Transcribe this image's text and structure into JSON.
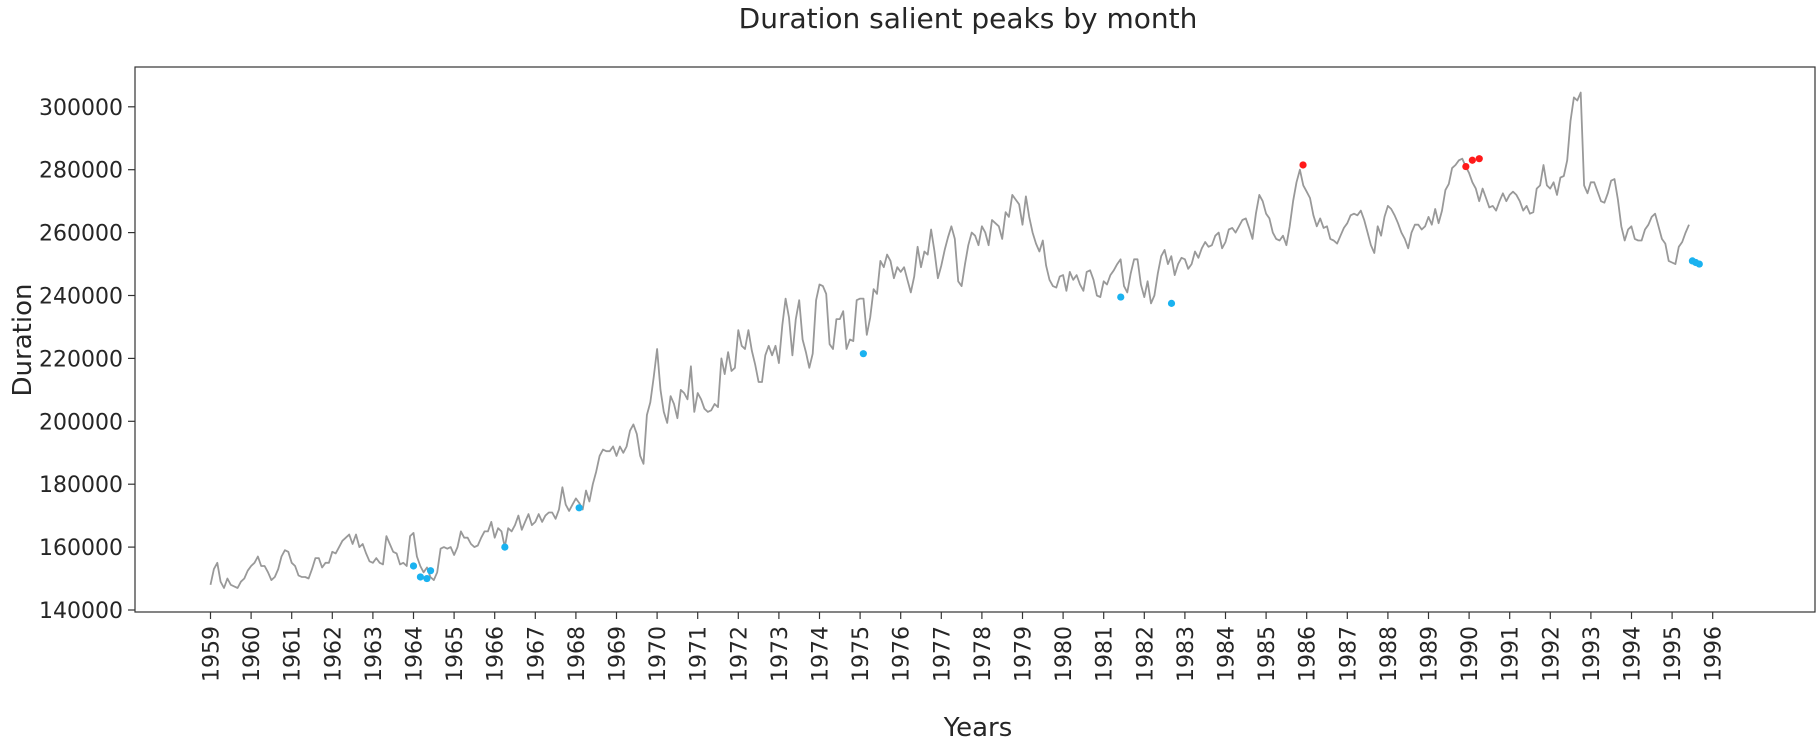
{
  "chart_data": {
    "type": "line",
    "title": "Duration salient peaks by month",
    "xlabel": "Years",
    "ylabel": "Duration",
    "xlim": [
      1959.0,
      1996.0
    ],
    "ylim": [
      140000,
      300000
    ],
    "yticks": [
      140000,
      160000,
      180000,
      200000,
      220000,
      240000,
      260000,
      280000,
      300000
    ],
    "xticks": [
      1959,
      1960,
      1961,
      1962,
      1963,
      1964,
      1965,
      1966,
      1967,
      1968,
      1969,
      1970,
      1971,
      1972,
      1973,
      1974,
      1975,
      1976,
      1977,
      1978,
      1979,
      1980,
      1981,
      1982,
      1983,
      1984,
      1985,
      1986,
      1987,
      1988,
      1989,
      1990,
      1991,
      1992,
      1993,
      1994,
      1995,
      1996
    ],
    "grid": false,
    "colors": {
      "line": "#999999",
      "high_peak": "#ff1a1a",
      "low_peak": "#1ab2f0",
      "axis": "#333333",
      "text": "#262626"
    },
    "series": [
      {
        "name": "Duration",
        "x_start": 1959.0,
        "x_step": 0.08333,
        "values": [
          148000,
          153000,
          155000,
          149000,
          147000,
          150000,
          148000,
          147500,
          147000,
          149000,
          150000,
          152500,
          154000,
          155000,
          157000,
          154000,
          154000,
          152000,
          149500,
          150500,
          153000,
          157000,
          159000,
          158500,
          155000,
          154000,
          151000,
          150500,
          150500,
          150000,
          153000,
          156500,
          156500,
          153500,
          155000,
          155000,
          158500,
          158000,
          160000,
          162000,
          163000,
          164000,
          161000,
          164000,
          160000,
          161000,
          158000,
          155500,
          155000,
          156500,
          155000,
          154500,
          163500,
          161000,
          158500,
          158000,
          154500,
          155000,
          154000,
          163500,
          164500,
          157000,
          154000,
          152000,
          153500,
          150500,
          149500,
          152000,
          159500,
          160000,
          159500,
          160000,
          157500,
          160000,
          165000,
          163000,
          163000,
          161000,
          160000,
          160500,
          163000,
          165000,
          165000,
          168000,
          163000,
          166000,
          165000,
          160000,
          166000,
          165000,
          167000,
          170000,
          165500,
          168000,
          170500,
          167000,
          168000,
          170500,
          168000,
          170000,
          171000,
          171000,
          169000,
          172000,
          179000,
          173500,
          171500,
          173500,
          175500,
          174000,
          172000,
          178000,
          174500,
          180000,
          184000,
          189000,
          191000,
          190500,
          190500,
          192000,
          189000,
          192000,
          190000,
          192000,
          197000,
          199000,
          196000,
          189000,
          186500,
          202000,
          206000,
          214000,
          223000,
          210000,
          203000,
          199500,
          208000,
          205500,
          201000,
          210000,
          209000,
          207000,
          217500,
          203000,
          209000,
          207000,
          204000,
          203000,
          203500,
          205500,
          204500,
          220000,
          215000,
          222000,
          216000,
          217000,
          229000,
          224000,
          223000,
          229000,
          222500,
          218000,
          212500,
          212500,
          221000,
          224000,
          221000,
          224000,
          218500,
          230500,
          239000,
          233000,
          221000,
          232500,
          238500,
          226000,
          222000,
          217000,
          221500,
          238500,
          243500,
          243000,
          240500,
          224500,
          223000,
          232500,
          232500,
          235000,
          223000,
          226000,
          225500,
          238500,
          239000,
          239000,
          227500,
          233000,
          242000,
          240500,
          251000,
          249000,
          253000,
          251000,
          245500,
          249000,
          247500,
          249000,
          245000,
          241000,
          246000,
          255500,
          249000,
          254000,
          253000,
          261000,
          254000,
          245500,
          249500,
          254500,
          258500,
          262000,
          258000,
          244500,
          243000,
          250000,
          256000,
          260000,
          259000,
          256000,
          262000,
          260000,
          256000,
          264000,
          263000,
          262000,
          258000,
          266500,
          265000,
          272000,
          270500,
          269000,
          262500,
          271500,
          265000,
          260000,
          256500,
          254000,
          257500,
          249500,
          245000,
          243000,
          242500,
          246000,
          246500,
          241500,
          247500,
          245000,
          246500,
          243500,
          241500,
          247500,
          248000,
          245000,
          240000,
          239500,
          244500,
          243500,
          246500,
          248000,
          250000,
          251500,
          243000,
          241000,
          247000,
          251500,
          251500,
          243500,
          239500,
          244500,
          237500,
          240000,
          247000,
          252500,
          254500,
          250000,
          252500,
          246500,
          250000,
          252000,
          251500,
          248500,
          250000,
          254000,
          252000,
          255000,
          257000,
          255500,
          256000,
          259000,
          260000,
          255000,
          257000,
          261000,
          261500,
          260000,
          262000,
          264000,
          264500,
          261500,
          258000,
          266000,
          272000,
          270000,
          266000,
          264500,
          260000,
          258000,
          257500,
          259000,
          256000,
          262000,
          270000,
          276000,
          280000,
          275000,
          273000,
          271000,
          265500,
          262000,
          264500,
          261500,
          262000,
          258000,
          257500,
          256500,
          259000,
          261500,
          263000,
          265500,
          266000,
          265500,
          267000,
          264000,
          260000,
          256000,
          253500,
          262000,
          259000,
          265000,
          268500,
          267500,
          265500,
          263000,
          260000,
          258000,
          255000,
          260000,
          262500,
          262500,
          261000,
          262000,
          265000,
          262500,
          267500,
          263000,
          267000,
          273500,
          275500,
          280500,
          281500,
          283000,
          283500,
          281000,
          279000,
          276000,
          274000,
          270000,
          274000,
          271000,
          268000,
          268500,
          267000,
          270000,
          272500,
          270000,
          272000,
          273000,
          272000,
          270000,
          267000,
          268500,
          266000,
          266500,
          274000,
          275000,
          281500,
          275000,
          274000,
          276000,
          272000,
          277500,
          278000,
          283000,
          295500,
          303000,
          302000,
          304500,
          275000,
          272500,
          276000,
          276000,
          273000,
          270000,
          269500,
          272500,
          276500,
          277000,
          270500,
          262000,
          257500,
          261000,
          262000,
          258000,
          257500,
          257500,
          261000,
          262500,
          265000,
          266000,
          262000,
          258000,
          256500,
          251000,
          250500,
          250000,
          255500,
          257000,
          260000,
          262500
        ]
      }
    ],
    "high_peaks": [
      {
        "x": 1985.91,
        "y": 281500
      },
      {
        "x": 1989.92,
        "y": 281000
      },
      {
        "x": 1990.08,
        "y": 283000
      },
      {
        "x": 1990.25,
        "y": 283500
      }
    ],
    "low_peaks": [
      {
        "x": 1964.0,
        "y": 154000
      },
      {
        "x": 1964.17,
        "y": 150500
      },
      {
        "x": 1964.33,
        "y": 150000
      },
      {
        "x": 1964.42,
        "y": 152500
      },
      {
        "x": 1966.25,
        "y": 160000
      },
      {
        "x": 1968.08,
        "y": 172500
      },
      {
        "x": 1975.08,
        "y": 221500
      },
      {
        "x": 1981.42,
        "y": 239500
      },
      {
        "x": 1982.67,
        "y": 237500
      },
      {
        "x": 1995.5,
        "y": 251000
      },
      {
        "x": 1995.58,
        "y": 250500
      },
      {
        "x": 1995.67,
        "y": 250000
      }
    ]
  }
}
